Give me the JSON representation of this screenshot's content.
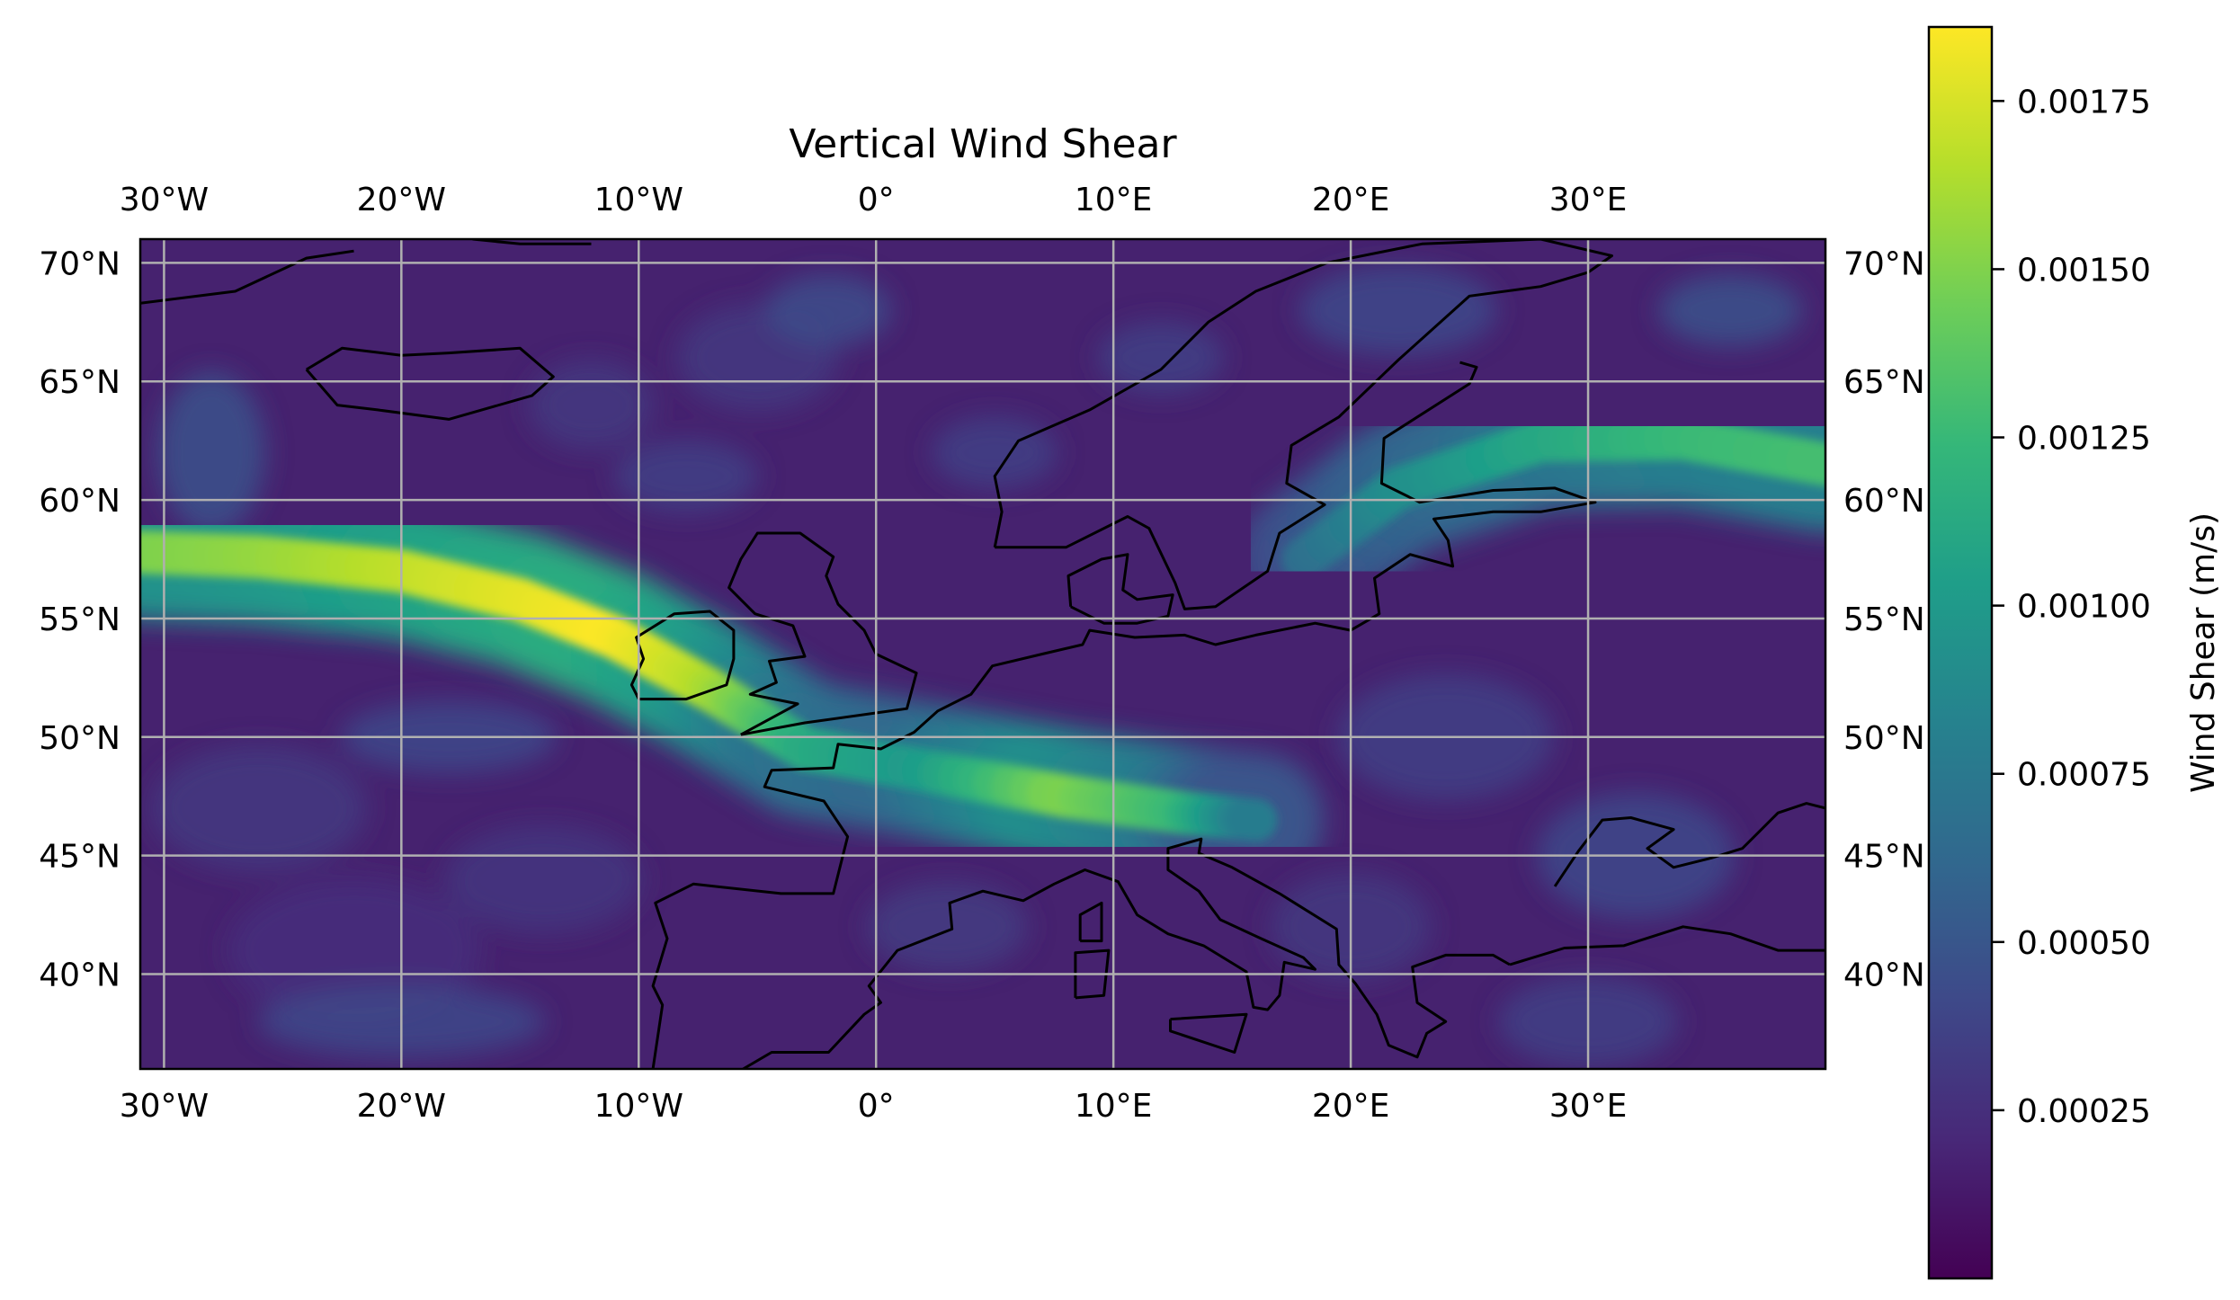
{
  "chart_data": {
    "type": "heatmap",
    "title": "Vertical Wind Shear",
    "projection": "PlateCarree",
    "lon_range": [
      -31,
      40
    ],
    "lat_range": [
      36,
      71
    ],
    "lon_ticks": [
      {
        "value": -30,
        "label": "30°W"
      },
      {
        "value": -20,
        "label": "20°W"
      },
      {
        "value": -10,
        "label": "10°W"
      },
      {
        "value": 0,
        "label": "0°"
      },
      {
        "value": 10,
        "label": "10°E"
      },
      {
        "value": 20,
        "label": "20°E"
      },
      {
        "value": 30,
        "label": "30°E"
      }
    ],
    "lat_ticks": [
      {
        "value": 40,
        "label": "40°N"
      },
      {
        "value": 45,
        "label": "45°N"
      },
      {
        "value": 50,
        "label": "50°N"
      },
      {
        "value": 55,
        "label": "55°N"
      },
      {
        "value": 60,
        "label": "60°N"
      },
      {
        "value": 65,
        "label": "65°N"
      },
      {
        "value": 70,
        "label": "70°N"
      }
    ],
    "grid": true,
    "coastlines": true,
    "colormap": "viridis",
    "colorbar": {
      "label": "Wind Shear (m/s)",
      "range": [
        0.0,
        0.00186
      ],
      "ticks": [
        {
          "value": 0.00025,
          "label": "0.00025"
        },
        {
          "value": 0.0005,
          "label": "0.00050"
        },
        {
          "value": 0.00075,
          "label": "0.00075"
        },
        {
          "value": 0.001,
          "label": "0.00100"
        },
        {
          "value": 0.00125,
          "label": "0.00125"
        },
        {
          "value": 0.0015,
          "label": "0.00150"
        },
        {
          "value": 0.00175,
          "label": "0.00175"
        }
      ]
    },
    "jet_axis": [
      {
        "lon": -31,
        "lat": 57.8,
        "value": 0.00148
      },
      {
        "lon": -26,
        "lat": 57.6,
        "value": 0.00155
      },
      {
        "lon": -20,
        "lat": 57.0,
        "value": 0.00168
      },
      {
        "lon": -15,
        "lat": 55.8,
        "value": 0.00178
      },
      {
        "lon": -11,
        "lat": 54.2,
        "value": 0.00186
      },
      {
        "lon": -7,
        "lat": 52.0,
        "value": 0.00165
      },
      {
        "lon": -3,
        "lat": 49.5,
        "value": 0.00115
      },
      {
        "lon": 2,
        "lat": 48.6,
        "value": 0.001
      },
      {
        "lon": 8,
        "lat": 47.5,
        "value": 0.0015
      },
      {
        "lon": 13,
        "lat": 46.8,
        "value": 0.00125
      },
      {
        "lon": 16,
        "lat": 46.5,
        "value": 0.00075
      }
    ],
    "jet_axis_east": [
      {
        "lon": 18,
        "lat": 57.5,
        "value": 0.00065
      },
      {
        "lon": 22,
        "lat": 60.5,
        "value": 0.0009
      },
      {
        "lon": 28,
        "lat": 62.5,
        "value": 0.0011
      },
      {
        "lon": 34,
        "lat": 62.6,
        "value": 0.00125
      },
      {
        "lon": 40,
        "lat": 61.5,
        "value": 0.0013
      }
    ],
    "colors": {
      "viridis": [
        "#440154",
        "#482878",
        "#3e4989",
        "#31688e",
        "#26828e",
        "#1f9e89",
        "#35b779",
        "#6ece58",
        "#b5de2b",
        "#fde725"
      ],
      "coastline": "#000000",
      "gridline": "#b0b0b0"
    }
  }
}
